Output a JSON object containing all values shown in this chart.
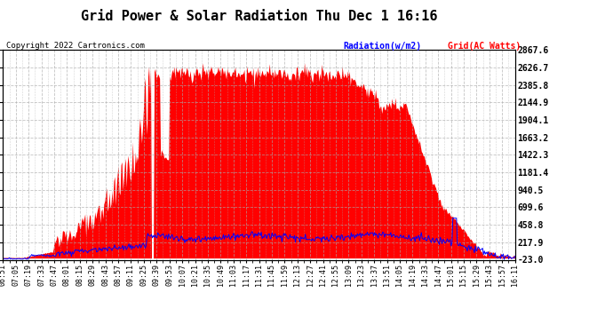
{
  "title": "Grid Power & Solar Radiation Thu Dec 1 16:16",
  "copyright": "Copyright 2022 Cartronics.com",
  "legend_radiation": "Radiation(w/m2)",
  "legend_grid": "Grid(AC Watts)",
  "legend_radiation_color": "#0000ff",
  "legend_grid_color": "#ff0000",
  "ylabel_right_ticks": [
    2867.6,
    2626.7,
    2385.8,
    2144.9,
    1904.1,
    1663.2,
    1422.3,
    1181.4,
    940.5,
    699.6,
    458.8,
    217.9,
    -23.0
  ],
  "ymin": -23.0,
  "ymax": 2867.6,
  "fill_color": "#ff0000",
  "line_color": "#0000ff",
  "background_color": "#ffffff",
  "grid_color": "#aaaaaa",
  "title_fontsize": 11,
  "tick_fontsize": 6,
  "x_labels": [
    "06:51",
    "07:05",
    "07:19",
    "07:33",
    "07:47",
    "08:01",
    "08:15",
    "08:29",
    "08:43",
    "08:57",
    "09:11",
    "09:25",
    "09:39",
    "09:53",
    "10:07",
    "10:21",
    "10:35",
    "10:49",
    "11:03",
    "11:17",
    "11:31",
    "11:45",
    "11:59",
    "12:13",
    "12:27",
    "12:41",
    "12:55",
    "13:09",
    "13:23",
    "13:37",
    "13:51",
    "14:05",
    "14:19",
    "14:33",
    "14:47",
    "15:01",
    "15:15",
    "15:29",
    "15:43",
    "15:57",
    "16:11"
  ]
}
